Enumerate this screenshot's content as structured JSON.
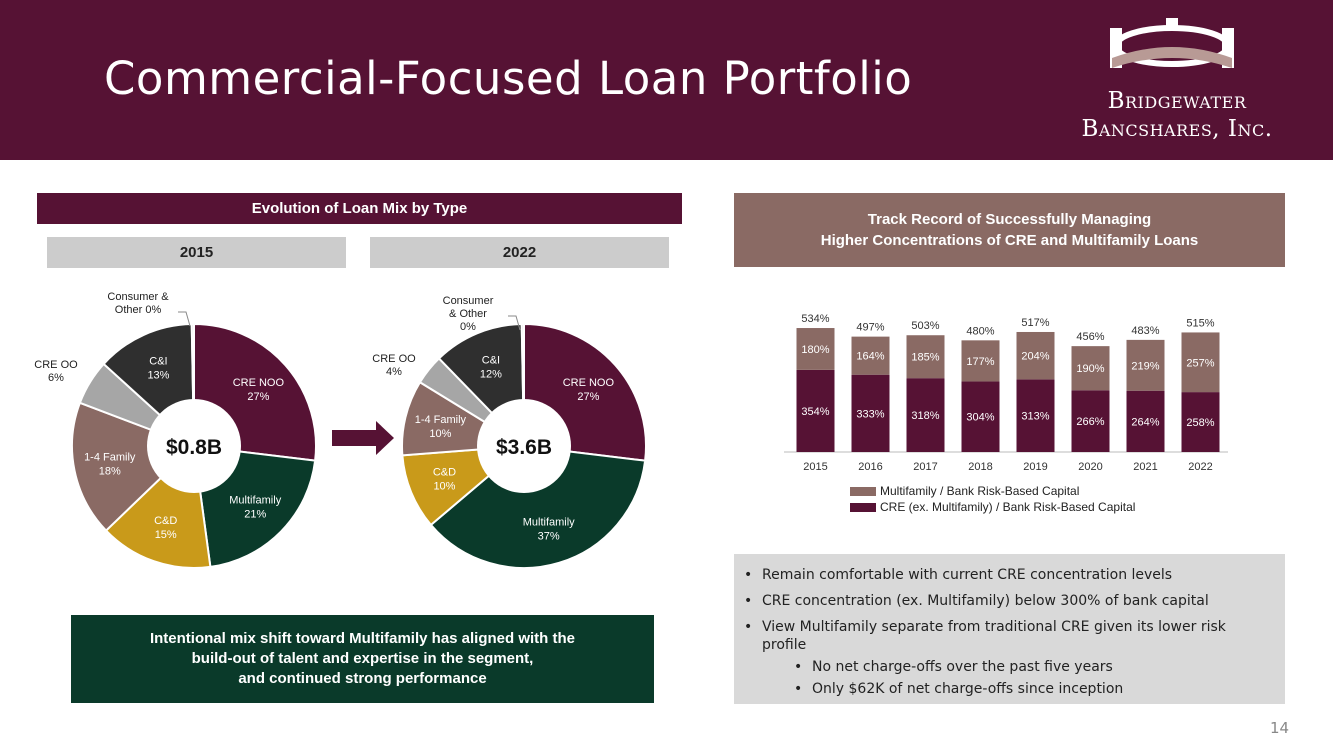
{
  "header": {
    "title": "Commercial-Focused Loan Portfolio",
    "logo_line1": "Bridgewater",
    "logo_line2": "Bancshares, Inc."
  },
  "left": {
    "section_title": "Evolution of Loan Mix by Type",
    "callout": [
      "Intentional mix shift toward Multifamily has aligned with the",
      "build-out of talent and expertise in the segment,",
      "and continued strong performance"
    ]
  },
  "right": {
    "section_title_line1": "Track Record of Successfully Managing",
    "section_title_line2": "Higher Concentrations of CRE and Multifamily Loans",
    "bullets": [
      "Remain comfortable with current CRE concentration levels",
      "CRE concentration (ex. Multifamily) below 300% of bank capital",
      "View Multifamily separate from traditional CRE given its lower risk profile"
    ],
    "sub_bullets": [
      "No net charge-offs over the past five years",
      "Only $62K of net charge-offs since inception"
    ]
  },
  "page_number": "14",
  "colors": {
    "maroon": "#561234",
    "green": "#0a3a2a",
    "gold": "#c99a1a",
    "taupe": "#8a6a64",
    "gray": "#a6a6a6",
    "charcoal": "#2f2f2f"
  },
  "chart_data": [
    {
      "type": "pie",
      "year_label": "2015",
      "center_label": "$0.8B",
      "slices": [
        {
          "label": "CRE NOO",
          "value": 27,
          "text": "27%",
          "color": "#561234",
          "inside": true
        },
        {
          "label": "Multifamily",
          "value": 21,
          "text": "21%",
          "color": "#0a3a2a",
          "inside": true
        },
        {
          "label": "C&D",
          "value": 15,
          "text": "15%",
          "color": "#c99a1a",
          "inside": true
        },
        {
          "label": "1-4 Family",
          "value": 18,
          "text": "18%",
          "color": "#8a6a64",
          "inside": true
        },
        {
          "label": "CRE OO",
          "value": 6,
          "text": "6%",
          "color": "#a6a6a6",
          "inside": false
        },
        {
          "label": "C&I",
          "value": 13,
          "text": "13%",
          "color": "#2f2f2f",
          "inside": true
        },
        {
          "label": "Consumer & Other",
          "value": 0.3,
          "text": "0%",
          "color": "#cccccc",
          "inside": false
        }
      ],
      "outside_labels": {
        "cre_oo": [
          "CRE OO",
          "6%"
        ],
        "consumer": [
          "Consumer &",
          "Other 0%"
        ]
      }
    },
    {
      "type": "pie",
      "year_label": "2022",
      "center_label": "$3.6B",
      "slices": [
        {
          "label": "CRE NOO",
          "value": 27,
          "text": "27%",
          "color": "#561234",
          "inside": true
        },
        {
          "label": "Multifamily",
          "value": 37,
          "text": "37%",
          "color": "#0a3a2a",
          "inside": true
        },
        {
          "label": "C&D",
          "value": 10,
          "text": "10%",
          "color": "#c99a1a",
          "inside": true
        },
        {
          "label": "1-4 Family",
          "value": 10,
          "text": "10%",
          "color": "#8a6a64",
          "inside": true
        },
        {
          "label": "CRE OO",
          "value": 4,
          "text": "4%",
          "color": "#a6a6a6",
          "inside": false
        },
        {
          "label": "C&I",
          "value": 12,
          "text": "12%",
          "color": "#2f2f2f",
          "inside": true
        },
        {
          "label": "Consumer & Other",
          "value": 0.3,
          "text": "0%",
          "color": "#cccccc",
          "inside": false
        }
      ],
      "outside_labels": {
        "cre_oo": [
          "CRE OO",
          "4%"
        ],
        "consumer": [
          "Consumer",
          "& Other",
          "0%"
        ]
      }
    },
    {
      "type": "bar",
      "stacked": true,
      "categories": [
        "2015",
        "2016",
        "2017",
        "2018",
        "2019",
        "2020",
        "2021",
        "2022"
      ],
      "series": [
        {
          "name": "CRE (ex. Multifamily) / Bank Risk-Based Capital",
          "color": "#561234",
          "values": [
            354,
            333,
            318,
            304,
            313,
            266,
            264,
            258
          ],
          "labels": [
            "354%",
            "333%",
            "318%",
            "304%",
            "313%",
            "266%",
            "264%",
            "258%"
          ]
        },
        {
          "name": "Multifamily / Bank Risk-Based Capital",
          "color": "#8a6a64",
          "values": [
            180,
            164,
            185,
            177,
            204,
            190,
            219,
            257
          ],
          "labels": [
            "180%",
            "164%",
            "185%",
            "177%",
            "204%",
            "190%",
            "219%",
            "257%"
          ]
        }
      ],
      "totals": [
        "534%",
        "497%",
        "503%",
        "480%",
        "517%",
        "456%",
        "483%",
        "515%"
      ],
      "total_values": [
        534,
        497,
        503,
        480,
        517,
        456,
        483,
        515
      ],
      "ylim": [
        0,
        560
      ],
      "legend_placement": "bottom"
    }
  ]
}
